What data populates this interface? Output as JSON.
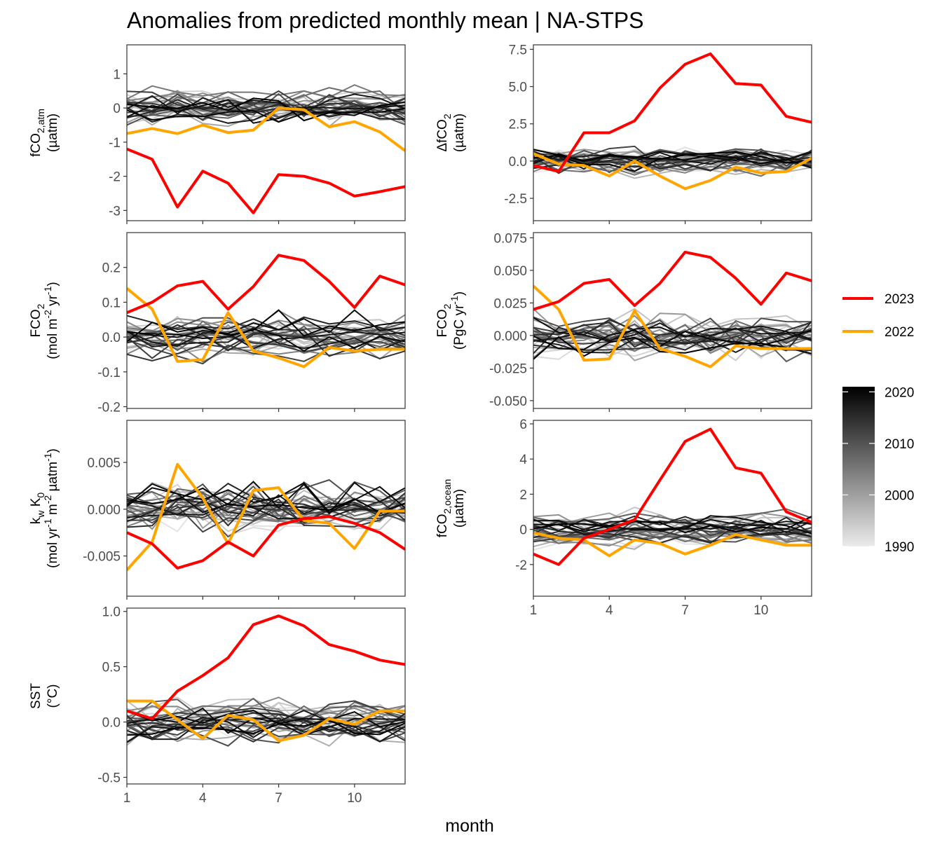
{
  "title": "Anomalies from predicted monthly mean | NA-STPS",
  "x_label": "month",
  "colors": {
    "y2023": "#ff0000",
    "y2022": "#ffa500",
    "background_years": "grey gradient"
  },
  "legend": {
    "series": [
      {
        "label": "2023",
        "color": "#ff0000"
      },
      {
        "label": "2022",
        "color": "#ffa500"
      }
    ],
    "gradient_ticks": [
      "2020",
      "2010",
      "2000",
      "1990"
    ],
    "gradient_values": [
      2020,
      2010,
      2000,
      1990
    ],
    "gradient_range": [
      1990,
      2021
    ]
  },
  "chart_data": [
    {
      "type": "line",
      "panel": "fco2-atm",
      "ylabel_lines": [
        {
          "parts": [
            [
              "t",
              "fCO"
            ],
            [
              "sub",
              "2,atm"
            ]
          ]
        },
        {
          "parts": [
            [
              "t",
              "(µatm)"
            ]
          ]
        }
      ],
      "x": [
        1,
        2,
        3,
        4,
        5,
        6,
        7,
        8,
        9,
        10,
        11,
        12
      ],
      "xlim": [
        1,
        12
      ],
      "xticks": [
        "1",
        "4",
        "7",
        "10"
      ],
      "xtick_values": [
        1,
        4,
        7,
        10
      ],
      "ylim": [
        -3.3,
        1.85
      ],
      "yticks": [
        "1",
        "0",
        "-1",
        "-2",
        "-3"
      ],
      "ytick_values": [
        1,
        0,
        -1,
        -2,
        -3
      ],
      "series": [
        {
          "name": "2023",
          "values": [
            -1.2,
            -1.5,
            -2.9,
            -1.85,
            -2.2,
            -3.07,
            -1.95,
            -2.0,
            -2.2,
            -2.58,
            -2.45,
            -2.3
          ]
        },
        {
          "name": "2022",
          "values": [
            -0.75,
            -0.6,
            -0.75,
            -0.5,
            -0.72,
            -0.65,
            0.0,
            -0.05,
            -0.55,
            -0.4,
            -0.7,
            -1.25
          ]
        }
      ],
      "background_amplitude": 0.55
    },
    {
      "type": "line",
      "panel": "delta-fco2",
      "ylabel_lines": [
        {
          "parts": [
            [
              "t",
              "ΔfCO"
            ],
            [
              "sub",
              "2"
            ]
          ]
        },
        {
          "parts": [
            [
              "t",
              "(µatm)"
            ]
          ]
        }
      ],
      "x": [
        1,
        2,
        3,
        4,
        5,
        6,
        7,
        8,
        9,
        10,
        11,
        12
      ],
      "xlim": [
        1,
        12
      ],
      "xticks": [
        "1",
        "4",
        "7",
        "10"
      ],
      "xtick_values": [
        1,
        4,
        7,
        10
      ],
      "ylim": [
        -4.0,
        7.8
      ],
      "yticks": [
        "7.5",
        "5.0",
        "2.5",
        "0.0",
        "-2.5"
      ],
      "ytick_values": [
        7.5,
        5.0,
        2.5,
        0.0,
        -2.5
      ],
      "series": [
        {
          "name": "2023",
          "values": [
            -0.3,
            -0.7,
            1.9,
            1.9,
            2.7,
            4.9,
            6.5,
            7.2,
            5.2,
            5.1,
            3.0,
            2.6
          ]
        },
        {
          "name": "2022",
          "values": [
            0.5,
            -0.2,
            -0.3,
            -1.0,
            0.0,
            -1.0,
            -1.85,
            -1.3,
            -0.4,
            -0.8,
            -0.7,
            0.2
          ]
        }
      ],
      "background_amplitude": 1.0
    },
    {
      "type": "line",
      "panel": "fco2-flux-mol",
      "ylabel_lines": [
        {
          "parts": [
            [
              "t",
              "FCO"
            ],
            [
              "sub",
              "2"
            ]
          ]
        },
        {
          "parts": [
            [
              "t",
              "(mol m"
            ],
            [
              "sup",
              "-2"
            ],
            [
              "t",
              " yr"
            ],
            [
              "sup",
              "-1"
            ],
            [
              "t",
              ")"
            ]
          ]
        }
      ],
      "x": [
        1,
        2,
        3,
        4,
        5,
        6,
        7,
        8,
        9,
        10,
        11,
        12
      ],
      "xlim": [
        1,
        12
      ],
      "xticks": [
        "1",
        "4",
        "7",
        "10"
      ],
      "xtick_values": [
        1,
        4,
        7,
        10
      ],
      "ylim": [
        -0.205,
        0.3
      ],
      "yticks": [
        "0.2",
        "0.1",
        "0.0",
        "-0.1",
        "-0.2"
      ],
      "ytick_values": [
        0.2,
        0.1,
        0.0,
        -0.1,
        -0.2
      ],
      "series": [
        {
          "name": "2023",
          "values": [
            0.07,
            0.1,
            0.147,
            0.16,
            0.08,
            0.145,
            0.235,
            0.22,
            0.16,
            0.085,
            0.175,
            0.15
          ]
        },
        {
          "name": "2022",
          "values": [
            0.14,
            0.08,
            -0.07,
            -0.065,
            0.07,
            -0.04,
            -0.06,
            -0.085,
            -0.03,
            -0.04,
            -0.035,
            -0.035
          ]
        }
      ],
      "background_amplitude": 0.07
    },
    {
      "type": "line",
      "panel": "fco2-flux-pgc",
      "ylabel_lines": [
        {
          "parts": [
            [
              "t",
              "FCO"
            ],
            [
              "sub",
              "2"
            ]
          ]
        },
        {
          "parts": [
            [
              "t",
              "(PgC yr"
            ],
            [
              "sup",
              "-1"
            ],
            [
              "t",
              ")"
            ]
          ]
        }
      ],
      "x": [
        1,
        2,
        3,
        4,
        5,
        6,
        7,
        8,
        9,
        10,
        11,
        12
      ],
      "xlim": [
        1,
        12
      ],
      "xticks": [
        "1",
        "4",
        "7",
        "10"
      ],
      "xtick_values": [
        1,
        4,
        7,
        10
      ],
      "ylim": [
        -0.056,
        0.079
      ],
      "yticks": [
        "0.075",
        "0.050",
        "0.025",
        "0.000",
        "-0.025",
        "-0.050"
      ],
      "ytick_values": [
        0.075,
        0.05,
        0.025,
        0.0,
        -0.025,
        -0.05
      ],
      "series": [
        {
          "name": "2023",
          "values": [
            0.02,
            0.026,
            0.04,
            0.043,
            0.023,
            0.04,
            0.064,
            0.06,
            0.044,
            0.024,
            0.048,
            0.042
          ]
        },
        {
          "name": "2022",
          "values": [
            0.038,
            0.02,
            -0.019,
            -0.018,
            0.019,
            -0.01,
            -0.016,
            -0.024,
            -0.008,
            -0.01,
            -0.01,
            -0.01
          ]
        }
      ],
      "background_amplitude": 0.019
    },
    {
      "type": "line",
      "panel": "kw-k0",
      "ylabel_lines": [
        {
          "parts": [
            [
              "t",
              "k"
            ],
            [
              "sub",
              "w"
            ],
            [
              "t",
              " K"
            ],
            [
              "sub",
              "0"
            ]
          ]
        },
        {
          "parts": [
            [
              "t",
              "(mol yr"
            ],
            [
              "sup",
              "-1"
            ],
            [
              "t",
              " m"
            ],
            [
              "sup",
              "-2"
            ],
            [
              "t",
              " µatm"
            ],
            [
              "sup",
              "-1"
            ],
            [
              "t",
              ")"
            ]
          ]
        }
      ],
      "x": [
        1,
        2,
        3,
        4,
        5,
        6,
        7,
        8,
        9,
        10,
        11,
        12
      ],
      "xlim": [
        1,
        12
      ],
      "xticks": [
        "1",
        "4",
        "7",
        "10"
      ],
      "xtick_values": [
        1,
        4,
        7,
        10
      ],
      "ylim": [
        -0.0093,
        0.0095
      ],
      "yticks": [
        "0.005",
        "0.000",
        "-0.005"
      ],
      "ytick_values": [
        0.005,
        0.0,
        -0.005
      ],
      "series": [
        {
          "name": "2023",
          "values": [
            -0.0025,
            -0.0037,
            -0.0063,
            -0.0055,
            -0.0035,
            -0.005,
            -0.0017,
            -0.001,
            -0.0008,
            -0.0015,
            -0.0025,
            -0.0043
          ]
        },
        {
          "name": "2022",
          "values": [
            -0.0065,
            -0.0035,
            0.0048,
            0.0012,
            -0.0037,
            0.002,
            0.0023,
            -0.0012,
            -0.0015,
            -0.0042,
            -0.0002,
            -0.0002
          ]
        }
      ],
      "background_amplitude": 0.0032
    },
    {
      "type": "line",
      "panel": "fco2-ocean",
      "ylabel_lines": [
        {
          "parts": [
            [
              "t",
              "fCO"
            ],
            [
              "sub",
              "2,ocean"
            ]
          ]
        },
        {
          "parts": [
            [
              "t",
              "(µatm)"
            ]
          ]
        }
      ],
      "x": [
        1,
        2,
        3,
        4,
        5,
        6,
        7,
        8,
        9,
        10,
        11,
        12
      ],
      "xlim": [
        1,
        12
      ],
      "xticks": [
        "1",
        "4",
        "7",
        "10"
      ],
      "xtick_values": [
        1,
        4,
        7,
        10
      ],
      "ylim": [
        -3.8,
        6.2
      ],
      "yticks": [
        "6",
        "4",
        "2",
        "0",
        "-2"
      ],
      "ytick_values": [
        6,
        4,
        2,
        0,
        -2
      ],
      "series": [
        {
          "name": "2023",
          "values": [
            -1.4,
            -2.0,
            -0.5,
            0.0,
            0.55,
            2.8,
            5.0,
            5.7,
            3.5,
            3.2,
            1.0,
            0.4
          ]
        },
        {
          "name": "2022",
          "values": [
            -0.2,
            -0.5,
            -0.6,
            -1.5,
            -0.6,
            -0.8,
            -1.4,
            -0.9,
            -0.3,
            -0.6,
            -0.9,
            -0.9
          ]
        }
      ],
      "background_amplitude": 1.0
    },
    {
      "type": "line",
      "panel": "sst",
      "ylabel_lines": [
        {
          "parts": [
            [
              "t",
              "SST"
            ]
          ]
        },
        {
          "parts": [
            [
              "t",
              "(°C)"
            ]
          ]
        }
      ],
      "x": [
        1,
        2,
        3,
        4,
        5,
        6,
        7,
        8,
        9,
        10,
        11,
        12
      ],
      "xlim": [
        1,
        12
      ],
      "xticks": [
        "1",
        "4",
        "7",
        "10"
      ],
      "xtick_values": [
        1,
        4,
        7,
        10
      ],
      "ylim": [
        -0.56,
        1.03
      ],
      "yticks": [
        "1.0",
        "0.5",
        "0.0",
        "-0.5"
      ],
      "ytick_values": [
        1.0,
        0.5,
        0.0,
        -0.5
      ],
      "series": [
        {
          "name": "2023",
          "values": [
            0.1,
            0.03,
            0.28,
            0.42,
            0.58,
            0.88,
            0.96,
            0.87,
            0.7,
            0.64,
            0.56,
            0.52
          ]
        },
        {
          "name": "2022",
          "values": [
            0.19,
            0.19,
            0.02,
            -0.15,
            0.06,
            0.02,
            -0.17,
            -0.12,
            0.03,
            -0.02,
            0.1,
            0.1
          ]
        }
      ],
      "background_amplitude": 0.2
    }
  ]
}
